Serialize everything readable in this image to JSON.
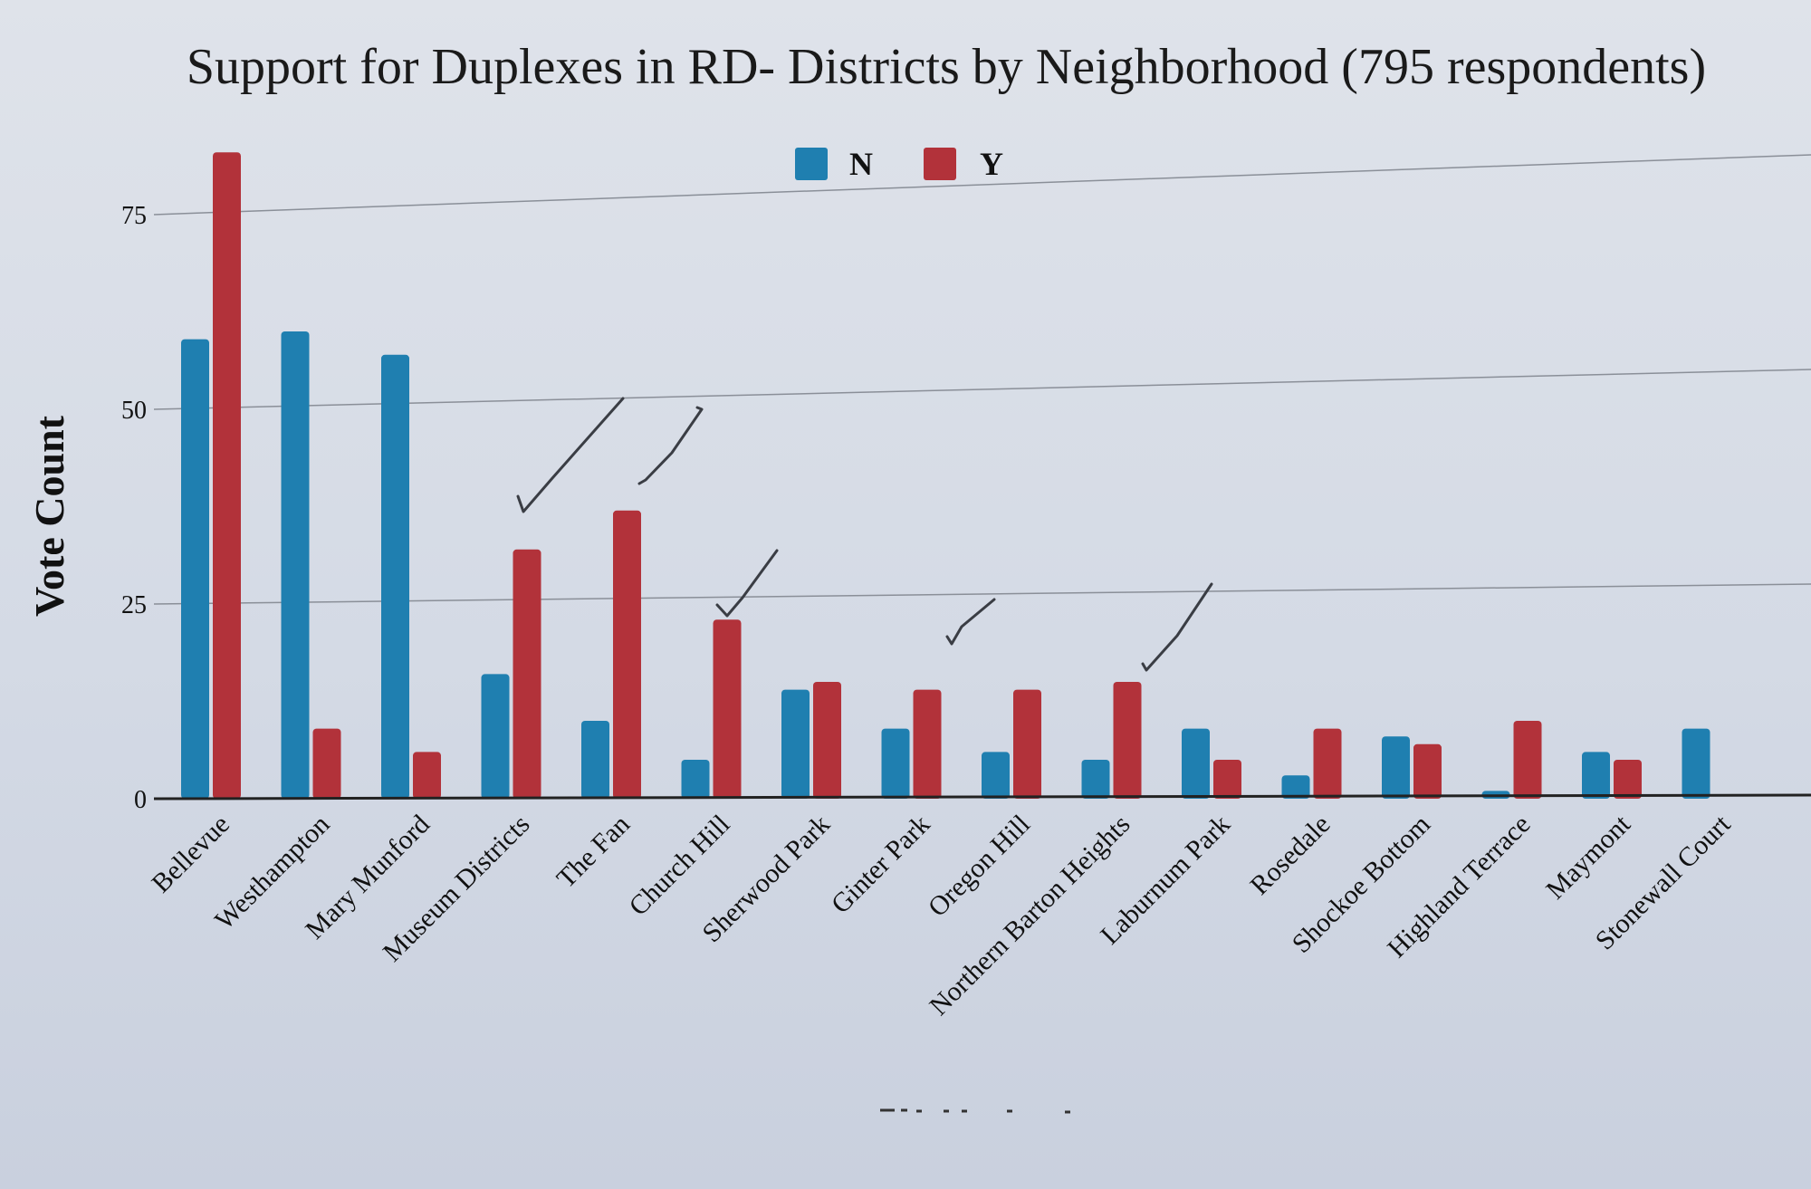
{
  "chart_data": {
    "type": "bar",
    "title": "Support for Duplexes in RD- Districts by Neighborhood (795 respondents)",
    "xlabel": "",
    "ylabel": "Vote Count",
    "ylim": [
      0,
      85
    ],
    "yticks": [
      0,
      25,
      50,
      75
    ],
    "grid": true,
    "legend_position": "top-center",
    "categories": [
      "Bellevue",
      "Westhampton",
      "Mary Munford",
      "Museum Districts",
      "The Fan",
      "Church Hill",
      "Sherwood Park",
      "Ginter Park",
      "Oregon Hill",
      "Northern Barton Heights",
      "Laburnum Park",
      "Rosedale",
      "Shockoe Bottom",
      "Highland Terrace",
      "Maymont",
      "Stonewall Court"
    ],
    "series": [
      {
        "name": "N",
        "color": "#1f7fb0",
        "values": [
          59,
          60,
          57,
          16,
          10,
          5,
          14,
          9,
          6,
          5,
          9,
          3,
          8,
          1,
          6,
          9
        ]
      },
      {
        "name": "Y",
        "color": "#b2323a",
        "values": [
          83,
          9,
          6,
          32,
          37,
          23,
          15,
          14,
          14,
          15,
          5,
          9,
          7,
          10,
          5,
          null
        ]
      }
    ]
  }
}
